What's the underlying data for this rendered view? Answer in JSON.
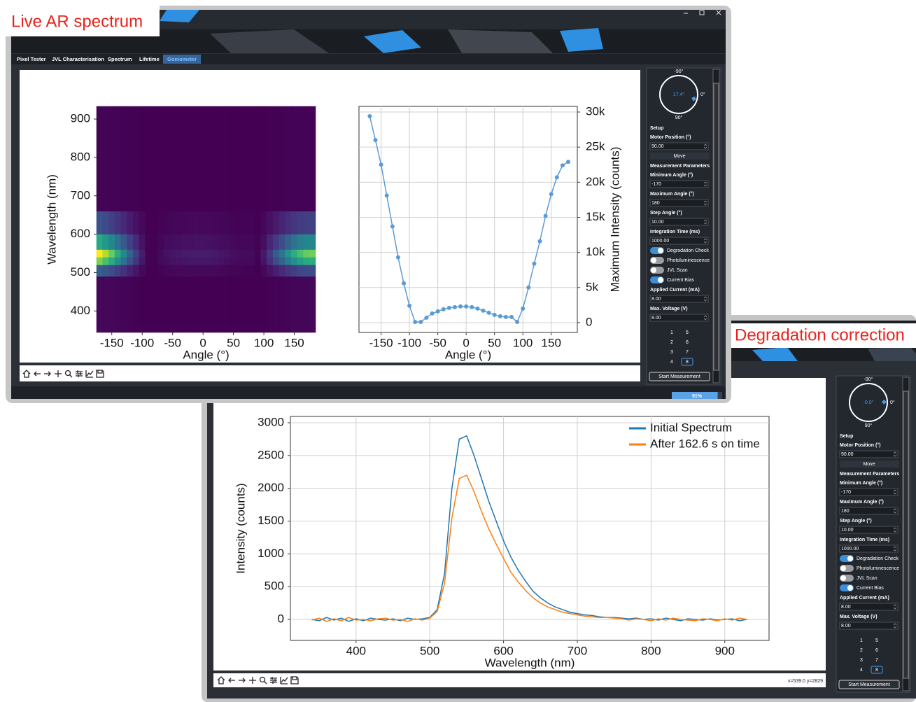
{
  "windows": [
    {
      "label": "Live AR spectrum",
      "tabs": [
        "Pixel Tester",
        "JVL Characterisation",
        "Spectrum",
        "Lifetime",
        "Goniometer"
      ],
      "active_tab": 4,
      "panel": {
        "dial": {
          "top": "-90°",
          "right": "0°",
          "bottom": "90°",
          "reading": "17.4°",
          "angle": 17.4
        },
        "items": [
          {
            "kind": "label",
            "text": "Setup"
          },
          {
            "kind": "label",
            "text": "Motor Position (°)"
          },
          {
            "kind": "input",
            "text": "90.00"
          },
          {
            "kind": "button",
            "text": "Move"
          },
          {
            "kind": "label",
            "text": "Measurement Parameters"
          },
          {
            "kind": "label",
            "text": "Minimum Angle (°)"
          },
          {
            "kind": "input",
            "text": "-170"
          },
          {
            "kind": "label",
            "text": "Maximum Angle (°)"
          },
          {
            "kind": "input",
            "text": "180"
          },
          {
            "kind": "label",
            "text": "Step Angle (°)"
          },
          {
            "kind": "input",
            "text": "10.00"
          },
          {
            "kind": "label",
            "text": "Integration Time (ms)"
          },
          {
            "kind": "input",
            "text": "1000.00"
          },
          {
            "kind": "toggle",
            "text": "Degradation Check",
            "on": true
          },
          {
            "kind": "toggle",
            "text": "Photoluminescence",
            "on": false
          },
          {
            "kind": "toggle",
            "text": "JVL Scan",
            "on": false
          },
          {
            "kind": "toggle",
            "text": "Current Bias",
            "on": true
          },
          {
            "kind": "label",
            "text": "Applied Current (mA)"
          },
          {
            "kind": "input",
            "text": "8.00"
          },
          {
            "kind": "label",
            "text": "Max. Voltage (V)"
          },
          {
            "kind": "input",
            "text": "8.00"
          }
        ],
        "keypad": [
          "1",
          "5",
          "2",
          "6",
          "3",
          "7",
          "4",
          "8"
        ],
        "keypad_selected": 7,
        "start": "Start Measurement"
      },
      "progress": {
        "value": 91,
        "label": "91%"
      }
    },
    {
      "label": "Degradation correction",
      "panel": {
        "dial": {
          "top": "-90°",
          "right": "0°",
          "bottom": "90°",
          "reading": "-0.0°",
          "angle": 0
        },
        "items": [
          {
            "kind": "label",
            "text": "Setup"
          },
          {
            "kind": "label",
            "text": "Motor Position (°)"
          },
          {
            "kind": "input",
            "text": "90.00"
          },
          {
            "kind": "button",
            "text": "Move"
          },
          {
            "kind": "label",
            "text": "Measurement Parameters"
          },
          {
            "kind": "label",
            "text": "Minimum Angle (°)"
          },
          {
            "kind": "input",
            "text": "-170"
          },
          {
            "kind": "label",
            "text": "Maximum Angle (°)"
          },
          {
            "kind": "input",
            "text": "180"
          },
          {
            "kind": "label",
            "text": "Step Angle (°)"
          },
          {
            "kind": "input",
            "text": "10.00"
          },
          {
            "kind": "label",
            "text": "Integration Time (ms)"
          },
          {
            "kind": "input",
            "text": "1000.00"
          },
          {
            "kind": "toggle",
            "text": "Degradation Check",
            "on": true
          },
          {
            "kind": "toggle",
            "text": "Photoluminescence",
            "on": false
          },
          {
            "kind": "toggle",
            "text": "JVL Scan",
            "on": false
          },
          {
            "kind": "toggle",
            "text": "Current Bias",
            "on": true
          },
          {
            "kind": "label",
            "text": "Applied Current (mA)"
          },
          {
            "kind": "input",
            "text": "8.00"
          },
          {
            "kind": "label",
            "text": "Max. Voltage (V)"
          },
          {
            "kind": "input",
            "text": "8.00"
          }
        ],
        "keypad": [
          "1",
          "5",
          "2",
          "6",
          "3",
          "7",
          "4",
          "8"
        ],
        "keypad_selected": 7,
        "start": "Start Measurement"
      },
      "status": "x=539.0 y=2829."
    }
  ],
  "chart_data": [
    {
      "type": "heatmap",
      "xlabel": "Angle (°)",
      "ylabel": "Wavelength (nm)",
      "colormap": "viridis",
      "x": [
        -170,
        -160,
        -150,
        -140,
        -130,
        -120,
        -110,
        -100,
        -90,
        -80,
        -70,
        -60,
        -50,
        -40,
        -30,
        -20,
        -10,
        0,
        10,
        20,
        30,
        40,
        50,
        60,
        70,
        80,
        90,
        100,
        110,
        120,
        130,
        140,
        150,
        160,
        170,
        180
      ],
      "ybins": [
        344,
        490,
        520,
        540,
        560,
        600,
        660,
        933
      ],
      "values": [
        [
          600,
          500,
          500,
          400,
          300,
          200,
          100,
          0,
          0,
          0,
          0,
          0,
          0,
          0,
          0,
          0,
          0,
          0,
          0,
          0,
          0,
          0,
          0,
          0,
          0,
          0,
          0,
          0,
          100,
          200,
          200,
          300,
          400,
          400,
          400,
          500
        ],
        [
          8800,
          7800,
          6800,
          5400,
          4100,
          2800,
          1700,
          700,
          0,
          0,
          200,
          400,
          500,
          600,
          600,
          700,
          700,
          700,
          700,
          600,
          500,
          400,
          300,
          300,
          200,
          200,
          0,
          600,
          1500,
          2500,
          3500,
          4600,
          5500,
          6200,
          6700,
          6900
        ],
        [
          23500,
          20800,
          18000,
          14500,
          11000,
          7400,
          4500,
          1900,
          100,
          100,
          600,
          1000,
          1300,
          1500,
          1700,
          1800,
          1800,
          1800,
          1800,
          1600,
          1400,
          1100,
          900,
          700,
          600,
          600,
          100,
          1600,
          4000,
          6700,
          9300,
          12200,
          14600,
          16600,
          17900,
          18300
        ],
        [
          29400,
          26000,
          22500,
          18100,
          13700,
          9300,
          5600,
          2400,
          100,
          100,
          700,
          1300,
          1600,
          1900,
          2100,
          2200,
          2300,
          2300,
          2200,
          2000,
          1700,
          1400,
          1100,
          900,
          800,
          800,
          100,
          2000,
          5000,
          8400,
          11600,
          15200,
          18300,
          20700,
          22400,
          22900
        ],
        [
          17600,
          15600,
          13500,
          10900,
          8200,
          5600,
          3400,
          1400,
          100,
          100,
          400,
          800,
          1000,
          1100,
          1300,
          1300,
          1400,
          1400,
          1300,
          1200,
          1000,
          800,
          700,
          500,
          500,
          500,
          100,
          1200,
          3000,
          5000,
          7000,
          9100,
          11000,
          12400,
          13400,
          13700
        ],
        [
          7400,
          6500,
          5600,
          4500,
          3400,
          2300,
          1400,
          600,
          0,
          0,
          200,
          300,
          400,
          500,
          500,
          600,
          600,
          600,
          600,
          500,
          400,
          400,
          300,
          200,
          200,
          200,
          0,
          500,
          1300,
          2100,
          2900,
          3800,
          4600,
          5200,
          5600,
          5700
        ],
        [
          300,
          300,
          200,
          200,
          100,
          100,
          100,
          0,
          0,
          0,
          0,
          0,
          0,
          0,
          0,
          0,
          0,
          0,
          0,
          0,
          0,
          0,
          0,
          0,
          0,
          0,
          0,
          0,
          100,
          100,
          100,
          200,
          200,
          200,
          200,
          200
        ]
      ],
      "xlim": [
        -175,
        185
      ],
      "ylim": [
        344,
        933
      ],
      "xticks": [
        -150,
        -100,
        -50,
        0,
        50,
        100,
        150
      ],
      "yticks": [
        400,
        500,
        600,
        700,
        800,
        900
      ]
    },
    {
      "type": "line",
      "xlabel": "Angle (°)",
      "ylabel": "Maximum Intensity (counts)",
      "yaxis": "right",
      "grid": true,
      "markers": true,
      "x": [
        -170,
        -160,
        -150,
        -140,
        -130,
        -120,
        -110,
        -100,
        -90,
        -80,
        -70,
        -60,
        -50,
        -40,
        -30,
        -20,
        -10,
        0,
        10,
        20,
        30,
        40,
        50,
        60,
        70,
        80,
        90,
        100,
        110,
        120,
        130,
        140,
        150,
        160,
        170,
        180
      ],
      "series": [
        {
          "color": "#5b9bd5",
          "values": [
            29400,
            26000,
            22500,
            18100,
            13700,
            9300,
            5600,
            2400,
            100,
            100,
            700,
            1300,
            1600,
            1900,
            2100,
            2200,
            2300,
            2300,
            2200,
            2000,
            1700,
            1400,
            1100,
            900,
            800,
            800,
            100,
            2000,
            5000,
            8400,
            11600,
            15200,
            18300,
            20700,
            22400,
            22900
          ]
        }
      ],
      "xlim": [
        -189,
        196
      ],
      "ylim": [
        -1400,
        30800
      ],
      "xticks": [
        -150,
        -100,
        -50,
        0,
        50,
        100,
        150
      ],
      "yticks": [
        0,
        {
          "value": 5000,
          "label": "5k"
        },
        {
          "value": 10000,
          "label": "10k"
        },
        {
          "value": 15000,
          "label": "15k"
        },
        {
          "value": 20000,
          "label": "20k"
        },
        {
          "value": 25000,
          "label": "25k"
        },
        {
          "value": 30000,
          "label": "30k"
        }
      ]
    },
    {
      "type": "line",
      "xlabel": "Wavelength (nm)",
      "ylabel": "Intensity (counts)",
      "grid": true,
      "legend": "upper right",
      "x": [
        340,
        350,
        360,
        370,
        380,
        390,
        400,
        410,
        420,
        430,
        440,
        450,
        460,
        470,
        480,
        490,
        500,
        510,
        520,
        530,
        540,
        550,
        560,
        570,
        580,
        590,
        600,
        610,
        620,
        630,
        640,
        650,
        660,
        670,
        680,
        690,
        700,
        710,
        720,
        730,
        740,
        750,
        760,
        770,
        780,
        790,
        800,
        810,
        820,
        830,
        840,
        850,
        860,
        870,
        880,
        890,
        900,
        910,
        920,
        930
      ],
      "series": [
        {
          "name": "Initial Spectrum",
          "color": "#1f77b4",
          "values": [
            0,
            -20,
            30,
            -10,
            20,
            -30,
            10,
            -20,
            20,
            0,
            -10,
            10,
            -20,
            20,
            0,
            10,
            30,
            150,
            700,
            2000,
            2750,
            2800,
            2500,
            2150,
            1800,
            1500,
            1200,
            950,
            750,
            580,
            430,
            330,
            250,
            190,
            150,
            110,
            90,
            70,
            60,
            40,
            30,
            30,
            20,
            10,
            20,
            0,
            10,
            -10,
            20,
            0,
            -20,
            10,
            0,
            -10,
            10,
            -10,
            0,
            10,
            -20,
            0
          ]
        },
        {
          "name": "After 162.6 s on time",
          "color": "#ff7f0e",
          "values": [
            -10,
            20,
            -30,
            10,
            -20,
            30,
            -10,
            0,
            -20,
            10,
            20,
            -10,
            0,
            -30,
            10,
            -10,
            20,
            120,
            550,
            1550,
            2150,
            2200,
            1950,
            1650,
            1380,
            1150,
            930,
            720,
            570,
            440,
            330,
            250,
            190,
            150,
            110,
            90,
            70,
            50,
            40,
            30,
            30,
            20,
            10,
            -10,
            10,
            0,
            -20,
            10,
            -10,
            20,
            0,
            -10,
            -20,
            10,
            0,
            -20,
            10,
            -10,
            20,
            0
          ]
        }
      ],
      "xlim": [
        311,
        960
      ],
      "ylim": [
        -320,
        3096
      ],
      "xticks": [
        400,
        500,
        600,
        700,
        800,
        900
      ],
      "yticks": [
        0,
        500,
        1000,
        1500,
        2000,
        2500,
        3000
      ]
    }
  ]
}
